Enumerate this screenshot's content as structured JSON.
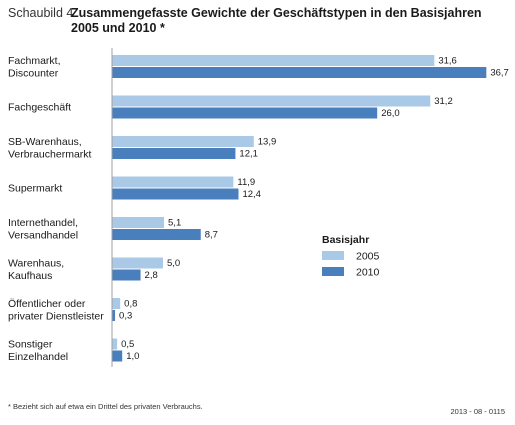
{
  "figure": {
    "label": "Schaubild 4",
    "title": "Zusammengefasste Gewichte der Geschäftstypen in den Basisjahren 2005 und 2010 *",
    "footnote": "* Bezieht sich auf etwa ein Drittel des privaten Verbrauchs.",
    "code": "2013 - 08 - 0115"
  },
  "colors": {
    "series_2005": "#a9c9e6",
    "series_2010": "#4a7fbd",
    "axis": "#a0a0a0"
  },
  "chart_data": {
    "type": "bar",
    "orientation": "horizontal",
    "title": "Zusammengefasste Gewichte der Geschäftstypen in den Basisjahren 2005 und 2010 *",
    "xlabel": "",
    "ylabel": "",
    "xlim": [
      0,
      37
    ],
    "grid": false,
    "legend": {
      "title": "Basisjahr",
      "position": "right"
    },
    "categories": [
      [
        "Fachmarkt,",
        "Discounter"
      ],
      [
        "Fachgeschäft"
      ],
      [
        "SB-Warenhaus,",
        "Verbrauchermarkt"
      ],
      [
        "Supermarkt"
      ],
      [
        "Internethandel,",
        "Versandhandel"
      ],
      [
        "Warenhaus,",
        "Kaufhaus"
      ],
      [
        "Öffentlicher oder",
        "privater Dienstleister"
      ],
      [
        "Sonstiger",
        "Einzelhandel"
      ]
    ],
    "series": [
      {
        "name": "2005",
        "values": [
          31.6,
          31.2,
          13.9,
          11.9,
          5.1,
          5.0,
          0.8,
          0.5
        ],
        "labels": [
          "31,6",
          "31,2",
          "13,9",
          "11,9",
          "5,1",
          "5,0",
          "0,8",
          "0,5"
        ]
      },
      {
        "name": "2010",
        "values": [
          36.7,
          26.0,
          12.1,
          12.4,
          8.7,
          2.8,
          0.3,
          1.0
        ],
        "labels": [
          "36,7",
          "26,0",
          "12,1",
          "12,4",
          "8,7",
          "2,8",
          "0,3",
          "1,0"
        ]
      }
    ]
  }
}
